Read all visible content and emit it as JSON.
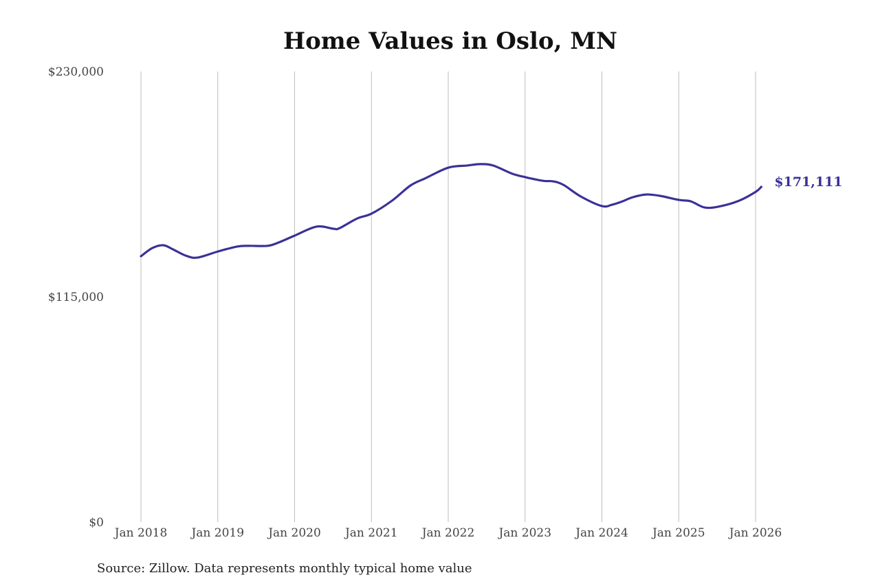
{
  "chart_data": {
    "type": "line",
    "title": "Home Values in Oslo, MN",
    "source": "Source: Zillow. Data represents monthly typical home value",
    "xlabel": "",
    "ylabel": "",
    "ylim": [
      0,
      230000
    ],
    "y_ticks": [
      {
        "value": 0,
        "label": "$0"
      },
      {
        "value": 115000,
        "label": "$115,000"
      },
      {
        "value": 230000,
        "label": "$230,000"
      }
    ],
    "x_ticks": [
      {
        "month": 0,
        "label": "Jan 2018"
      },
      {
        "month": 12,
        "label": "Jan 2019"
      },
      {
        "month": 24,
        "label": "Jan 2020"
      },
      {
        "month": 36,
        "label": "Jan 2021"
      },
      {
        "month": 48,
        "label": "Jan 2022"
      },
      {
        "month": 60,
        "label": "Jan 2023"
      },
      {
        "month": 72,
        "label": "Jan 2024"
      },
      {
        "month": 84,
        "label": "Jan 2025"
      },
      {
        "month": 96,
        "label": "Jan 2026"
      }
    ],
    "grid": "vertical",
    "color": "#3a3197",
    "end_label": "$171,111",
    "series": [
      {
        "name": "Typical home value",
        "x_unit": "months since Jan 2018",
        "points": [
          [
            0,
            135700
          ],
          [
            1.8,
            139900
          ],
          [
            3.5,
            141300
          ],
          [
            5,
            139200
          ],
          [
            7,
            136000
          ],
          [
            8.8,
            135000
          ],
          [
            12,
            138100
          ],
          [
            15,
            140600
          ],
          [
            16.8,
            141000
          ],
          [
            19.8,
            141000
          ],
          [
            21.5,
            142700
          ],
          [
            24,
            146200
          ],
          [
            27.4,
            150800
          ],
          [
            30.1,
            149700
          ],
          [
            31,
            150000
          ],
          [
            33.8,
            155000
          ],
          [
            36,
            157400
          ],
          [
            39.2,
            164000
          ],
          [
            42.1,
            171800
          ],
          [
            44.5,
            175600
          ],
          [
            48,
            180900
          ],
          [
            51,
            182000
          ],
          [
            53,
            182700
          ],
          [
            55,
            182000
          ],
          [
            58,
            177800
          ],
          [
            60.1,
            176000
          ],
          [
            62.8,
            174200
          ],
          [
            64.4,
            173900
          ],
          [
            66,
            172100
          ],
          [
            68.7,
            166200
          ],
          [
            72,
            161300
          ],
          [
            73.6,
            162000
          ],
          [
            75.2,
            163700
          ],
          [
            76.8,
            165800
          ],
          [
            78.9,
            167200
          ],
          [
            81.1,
            166500
          ],
          [
            84.1,
            164400
          ],
          [
            85.9,
            163700
          ],
          [
            88,
            160600
          ],
          [
            90.2,
            161000
          ],
          [
            93.4,
            164000
          ],
          [
            96,
            168500
          ],
          [
            96.9,
            171111
          ]
        ]
      }
    ]
  }
}
